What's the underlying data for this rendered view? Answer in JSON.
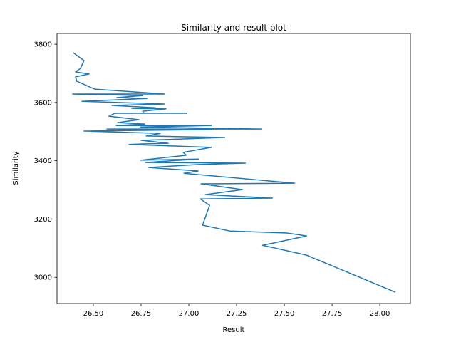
{
  "chart_data": {
    "type": "line",
    "title": "Similarity and result plot",
    "xlabel": "Result",
    "ylabel": "Similarity",
    "color": "#1f77b4",
    "x": [
      26.395,
      26.451,
      26.433,
      26.407,
      26.478,
      26.407,
      26.414,
      26.507,
      26.874,
      26.392,
      26.758,
      26.623,
      26.784,
      26.44,
      26.874,
      26.597,
      26.825,
      26.702,
      26.881,
      26.758,
      26.765,
      26.99,
      26.612,
      26.582,
      26.739,
      26.627,
      26.769,
      26.62,
      27.117,
      26.747,
      27.382,
      26.571,
      27.117,
      26.451,
      26.851,
      26.777,
      27.188,
      26.75,
      26.892,
      26.758,
      26.687,
      27.117,
      26.971,
      26.986,
      26.747,
      27.053,
      26.773,
      27.296,
      27.042,
      26.791,
      27.049,
      26.975,
      27.554,
      27.064,
      27.281,
      27.087,
      27.438,
      27.061,
      27.109,
      27.072,
      27.214,
      27.516,
      27.617,
      27.386,
      27.617,
      28.081
    ],
    "values": [
      3771,
      3744,
      3717,
      3705,
      3698,
      3688,
      3673,
      3646,
      3629,
      3629,
      3624,
      3617,
      3614,
      3604,
      3595,
      3590,
      3582,
      3580,
      3578,
      3570,
      3563,
      3563,
      3563,
      3553,
      3541,
      3531,
      3526,
      3521,
      3521,
      3516,
      3509,
      3509,
      3507,
      3502,
      3494,
      3485,
      3480,
      3470,
      3460,
      3458,
      3456,
      3446,
      3429,
      3419,
      3402,
      3406,
      3394,
      3392,
      3387,
      3377,
      3365,
      3357,
      3323,
      3321,
      3301,
      3284,
      3272,
      3269,
      3247,
      3179,
      3159,
      3152,
      3142,
      3110,
      3076,
      2949
    ],
    "xlim": [
      26.31,
      28.16
    ],
    "ylim": [
      2910,
      3837
    ],
    "xticks": [
      {
        "value": 26.5,
        "label": "26.50"
      },
      {
        "value": 26.75,
        "label": "26.75"
      },
      {
        "value": 27.0,
        "label": "27.00"
      },
      {
        "value": 27.25,
        "label": "27.25"
      },
      {
        "value": 27.5,
        "label": "27.50"
      },
      {
        "value": 27.75,
        "label": "27.75"
      },
      {
        "value": 28.0,
        "label": "28.00"
      }
    ],
    "yticks": [
      3000,
      3200,
      3400,
      3600,
      3800
    ]
  }
}
